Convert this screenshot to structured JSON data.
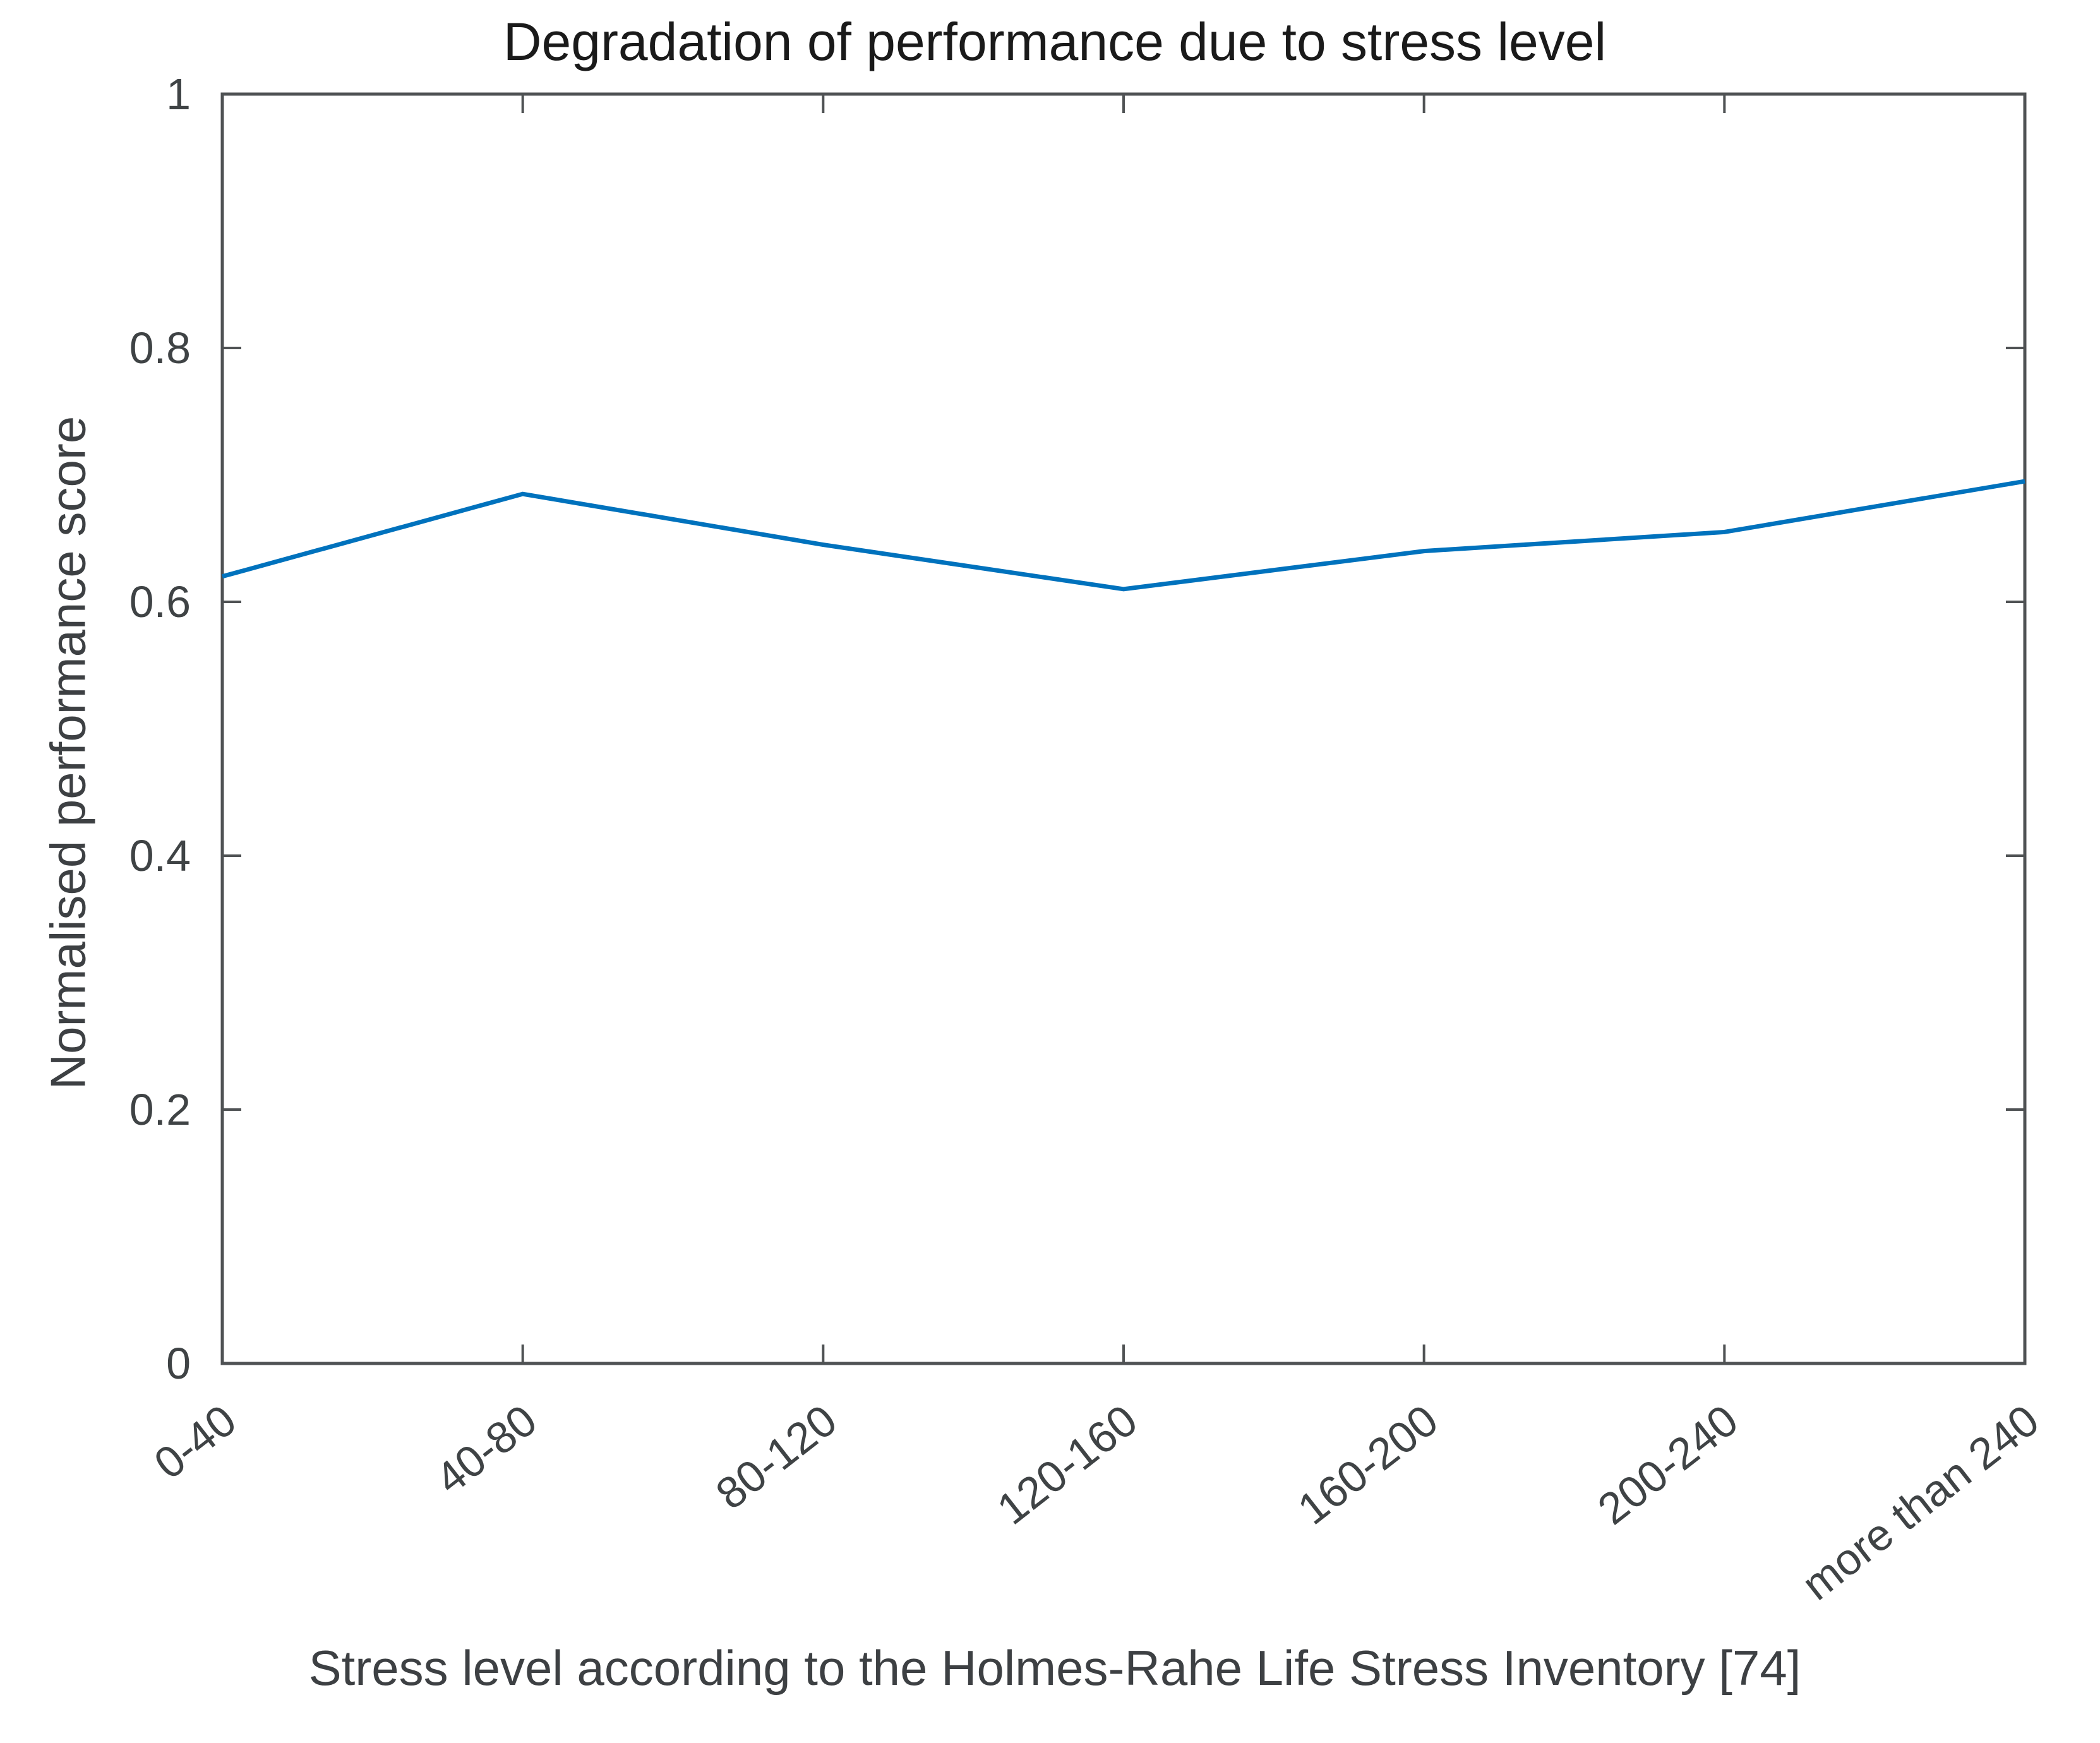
{
  "title": "Degradation of performance due to stress level",
  "chart_data": {
    "type": "line",
    "categories": [
      "0-40",
      "40-80",
      "80-120",
      "120-160",
      "160-200",
      "200-240",
      "more than 240"
    ],
    "series": [
      {
        "name": "Normalised performance score",
        "values": [
          0.62,
          0.685,
          0.645,
          0.61,
          0.64,
          0.655,
          0.695
        ]
      }
    ],
    "title": "Degradation of performance due to stress level",
    "xlabel": "Stress level according to the Holmes-Rahe Life Stress Inventory [74]",
    "ylabel": "Normalised performance score",
    "ylim": [
      0,
      1
    ],
    "yticks": [
      0,
      0.2,
      0.4,
      0.6,
      0.8,
      1
    ],
    "ytick_labels": [
      "0",
      "0.2",
      "0.4",
      "0.6",
      "0.8",
      "1"
    ],
    "xtick_angle_deg": 38,
    "grid": false,
    "legend": null,
    "box": true,
    "tick_direction": "in",
    "line_color": "#0072BD",
    "axis_color": "#4f5254",
    "tick_label_color": "#3f4345",
    "text_color": "#3d4043",
    "title_color": "#1a1a1a",
    "background_color": "#ffffff"
  }
}
